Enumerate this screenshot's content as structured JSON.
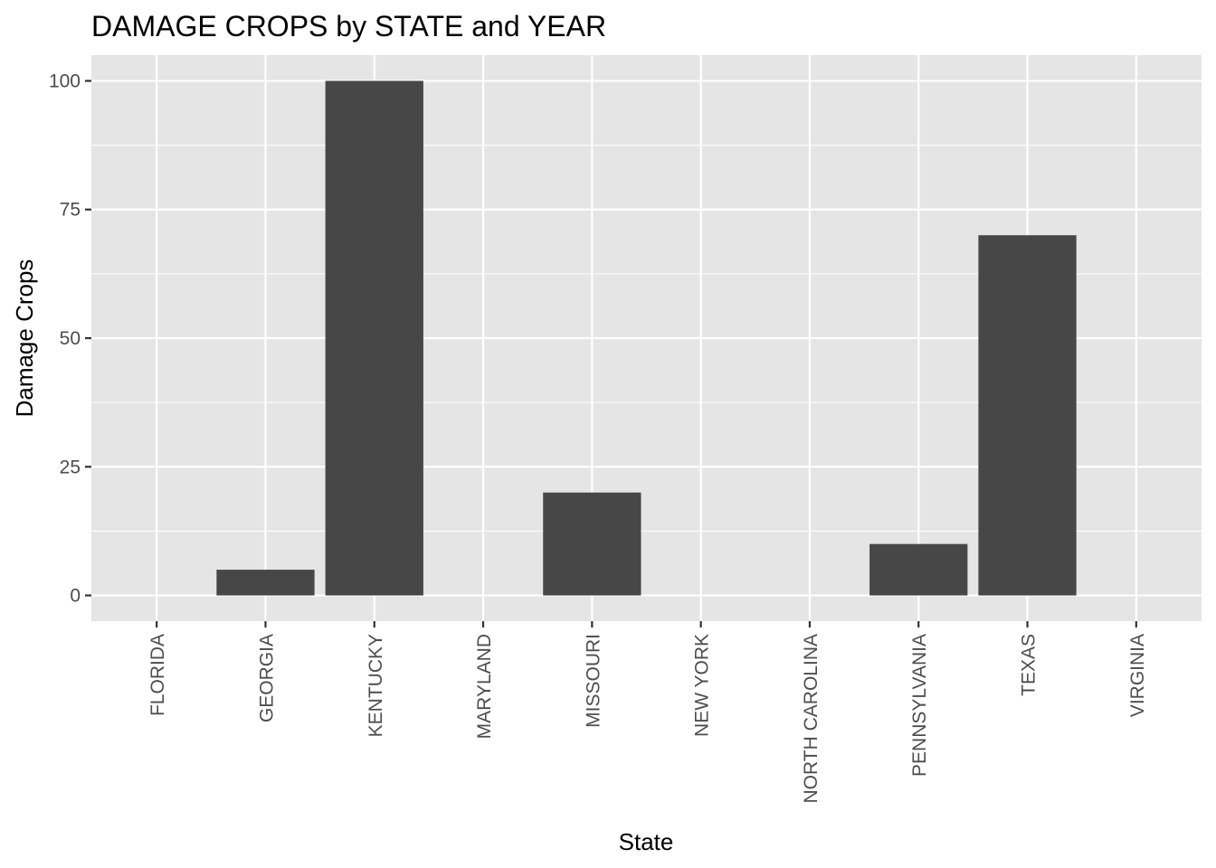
{
  "chart_data": {
    "type": "bar",
    "title": "DAMAGE CROPS by STATE and YEAR",
    "xlabel": "State",
    "ylabel": "Damage Crops",
    "categories": [
      "FLORIDA",
      "GEORGIA",
      "KENTUCKY",
      "MARYLAND",
      "MISSOURI",
      "NEW YORK",
      "NORTH CAROLINA",
      "PENNSYLVANIA",
      "TEXAS",
      "VIRGINIA"
    ],
    "values": [
      0,
      5,
      100,
      0,
      20,
      0,
      0,
      10,
      70,
      0
    ],
    "ylim": [
      -5,
      105
    ],
    "yticks": [
      0,
      25,
      50,
      75,
      100
    ],
    "grid": true,
    "colors": {
      "panel_background": "#e5e5e5",
      "grid_line": "#ffffff",
      "bar_fill": "#474747",
      "tick_mark": "#333333"
    }
  }
}
